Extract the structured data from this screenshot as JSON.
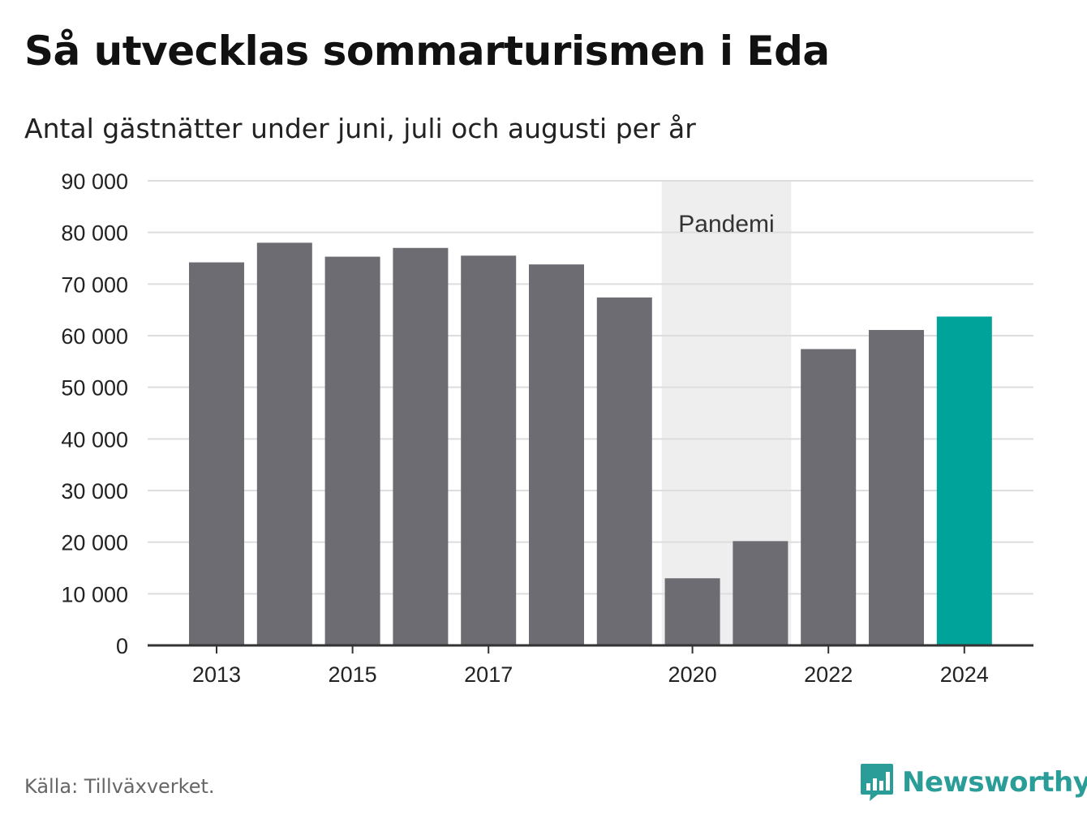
{
  "header": {
    "title": "Så utvecklas sommarturismen i Eda",
    "subtitle": "Antal gästnätter under juni, juli och augusti per år"
  },
  "chart_data": {
    "type": "bar",
    "categories": [
      "2013",
      "2014",
      "2015",
      "2016",
      "2017",
      "2018",
      "2019",
      "2020",
      "2021",
      "2022",
      "2023",
      "2024"
    ],
    "values": [
      74200,
      78000,
      75300,
      77000,
      75500,
      73800,
      67400,
      13000,
      20200,
      57400,
      61100,
      63700
    ],
    "tick_labels_x": [
      "2013",
      "2015",
      "2017",
      "2020",
      "2022",
      "2024"
    ],
    "y_ticks": [
      0,
      10000,
      20000,
      30000,
      40000,
      50000,
      60000,
      70000,
      80000,
      90000
    ],
    "y_tick_labels": [
      "0",
      "10 000",
      "20 000",
      "30 000",
      "40 000",
      "50 000",
      "60 000",
      "70 000",
      "80 000",
      "90 000"
    ],
    "ylim": [
      0,
      90000
    ],
    "xlabel": "",
    "ylabel": "",
    "grid": true,
    "annotation": {
      "label": "Pandemi",
      "from": "2020",
      "to": "2021"
    },
    "colors": {
      "bar": "#6d6c72",
      "highlight": "#00a39a",
      "highlight_category": "2024",
      "band": "#eeeeee",
      "grid": "#dddddd",
      "axis": "#333333"
    }
  },
  "footer": {
    "source": "Källa: Tillväxverket.",
    "brand": "Newsworthy",
    "brand_icon": "bar-chart-speech-bubble-icon",
    "brand_color": "#2a9d98"
  }
}
